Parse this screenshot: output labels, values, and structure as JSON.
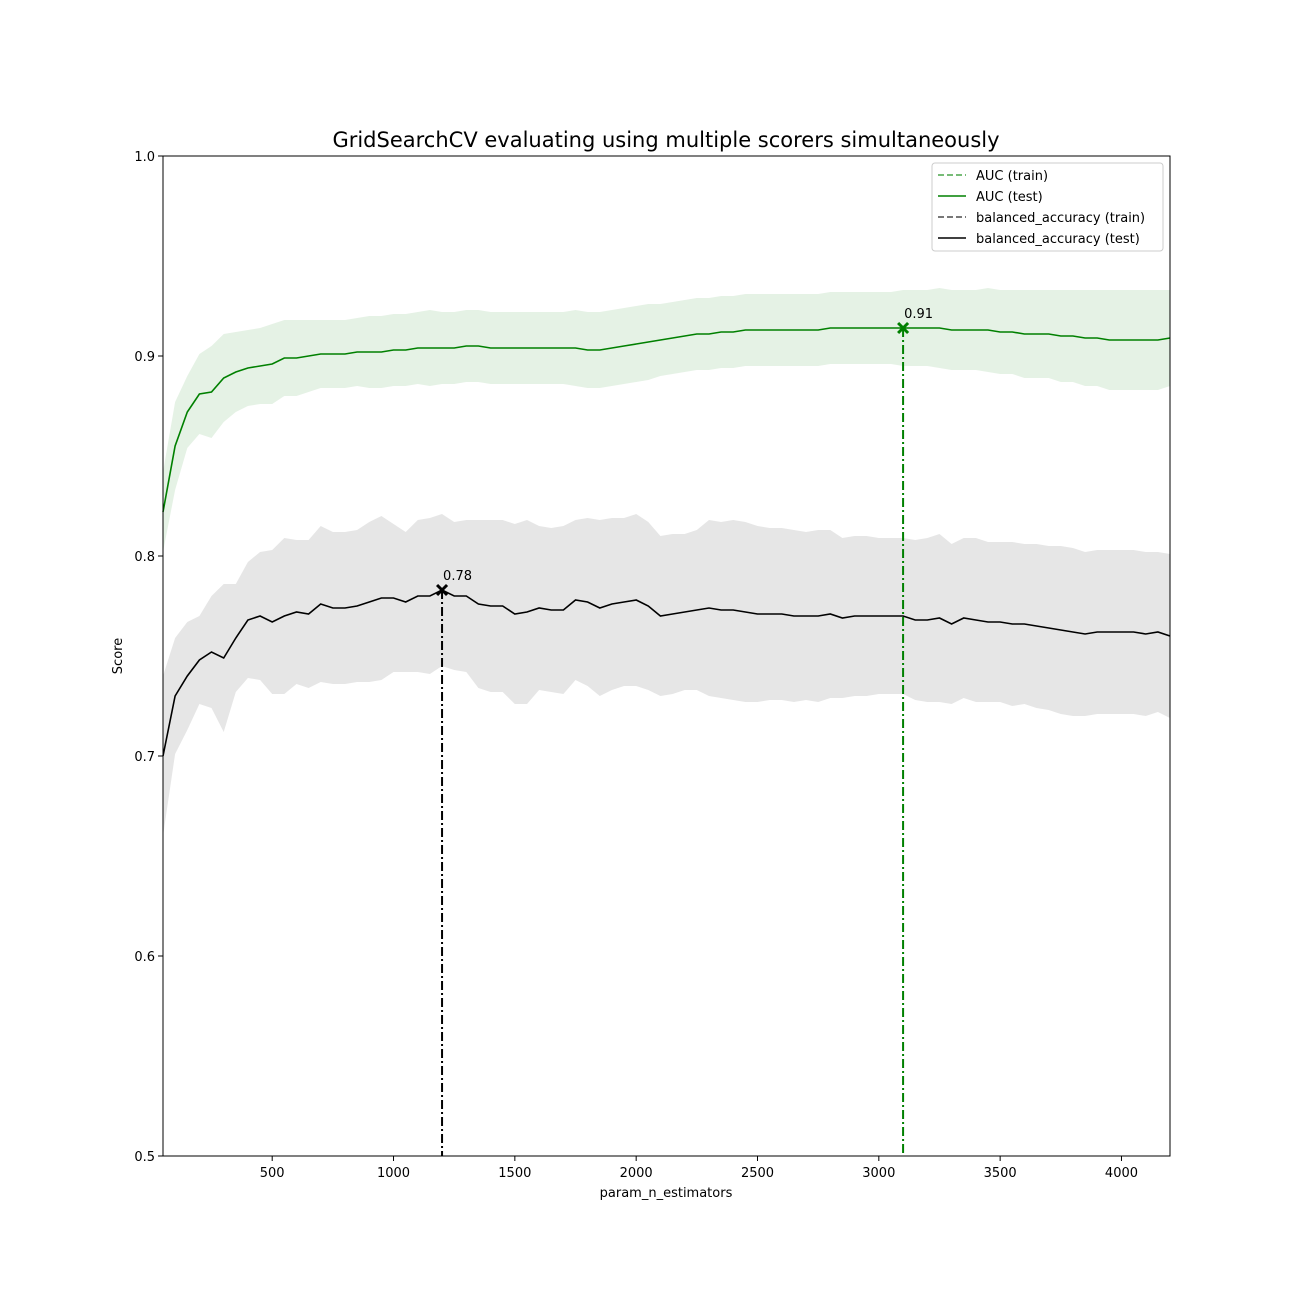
{
  "chart_data": {
    "type": "line",
    "title": "GridSearchCV evaluating using multiple scorers simultaneously",
    "xlabel": "param_n_estimators",
    "ylabel": "Score",
    "xlim": [
      50,
      4200
    ],
    "ylim": [
      0.5,
      1.0
    ],
    "xticks": [
      500,
      1000,
      1500,
      2000,
      2500,
      3000,
      3500,
      4000
    ],
    "yticks": [
      "0.5",
      "0.6",
      "0.7",
      "0.8",
      "0.9",
      "1.0"
    ],
    "grid": false,
    "legend_position": "top-right",
    "x": [
      50,
      100,
      150,
      200,
      250,
      300,
      350,
      400,
      450,
      500,
      550,
      600,
      650,
      700,
      750,
      800,
      850,
      900,
      950,
      1000,
      1050,
      1100,
      1150,
      1200,
      1250,
      1300,
      1350,
      1400,
      1450,
      1500,
      1550,
      1600,
      1650,
      1700,
      1750,
      1800,
      1850,
      1900,
      1950,
      2000,
      2050,
      2100,
      2150,
      2200,
      2250,
      2300,
      2350,
      2400,
      2450,
      2500,
      2550,
      2600,
      2650,
      2700,
      2750,
      2800,
      2850,
      2900,
      2950,
      3000,
      3050,
      3100,
      3150,
      3200,
      3250,
      3300,
      3350,
      3400,
      3450,
      3500,
      3550,
      3600,
      3650,
      3700,
      3750,
      3800,
      3850,
      3900,
      3950,
      4000,
      4050,
      4100,
      4150,
      4200
    ],
    "series": [
      {
        "name": "AUC (train)",
        "color": "#008000",
        "style": "dashed",
        "visible_in_plot": false
      },
      {
        "name": "AUC (test)",
        "color": "#008000",
        "style": "solid",
        "mean": [
          0.822,
          0.855,
          0.872,
          0.881,
          0.882,
          0.889,
          0.892,
          0.894,
          0.895,
          0.896,
          0.899,
          0.899,
          0.9,
          0.901,
          0.901,
          0.901,
          0.902,
          0.902,
          0.902,
          0.903,
          0.903,
          0.904,
          0.904,
          0.904,
          0.904,
          0.905,
          0.905,
          0.904,
          0.904,
          0.904,
          0.904,
          0.904,
          0.904,
          0.904,
          0.904,
          0.903,
          0.903,
          0.904,
          0.905,
          0.906,
          0.907,
          0.908,
          0.909,
          0.91,
          0.911,
          0.911,
          0.912,
          0.912,
          0.913,
          0.913,
          0.913,
          0.913,
          0.913,
          0.913,
          0.913,
          0.914,
          0.914,
          0.914,
          0.914,
          0.914,
          0.914,
          0.914,
          0.914,
          0.914,
          0.914,
          0.913,
          0.913,
          0.913,
          0.913,
          0.912,
          0.912,
          0.911,
          0.911,
          0.911,
          0.91,
          0.91,
          0.909,
          0.909,
          0.908,
          0.908,
          0.908,
          0.908,
          0.908,
          0.909
        ],
        "std": [
          0.02,
          0.022,
          0.018,
          0.02,
          0.023,
          0.022,
          0.02,
          0.019,
          0.019,
          0.02,
          0.019,
          0.019,
          0.018,
          0.017,
          0.017,
          0.017,
          0.017,
          0.018,
          0.018,
          0.018,
          0.018,
          0.018,
          0.019,
          0.018,
          0.018,
          0.018,
          0.018,
          0.018,
          0.018,
          0.018,
          0.018,
          0.018,
          0.018,
          0.018,
          0.019,
          0.019,
          0.019,
          0.019,
          0.019,
          0.019,
          0.019,
          0.018,
          0.018,
          0.018,
          0.018,
          0.018,
          0.018,
          0.018,
          0.018,
          0.018,
          0.018,
          0.018,
          0.018,
          0.018,
          0.018,
          0.018,
          0.018,
          0.018,
          0.018,
          0.018,
          0.018,
          0.019,
          0.019,
          0.019,
          0.02,
          0.02,
          0.02,
          0.02,
          0.021,
          0.021,
          0.021,
          0.022,
          0.022,
          0.022,
          0.023,
          0.023,
          0.024,
          0.024,
          0.025,
          0.025,
          0.025,
          0.025,
          0.025,
          0.024
        ],
        "best": {
          "x": 3100,
          "y": 0.914,
          "label": "0.91"
        }
      },
      {
        "name": "balanced_accuracy (train)",
        "color": "#000000",
        "style": "dashed",
        "visible_in_plot": false
      },
      {
        "name": "balanced_accuracy (test)",
        "color": "#000000",
        "style": "solid",
        "mean": [
          0.7,
          0.73,
          0.74,
          0.748,
          0.752,
          0.749,
          0.759,
          0.768,
          0.77,
          0.767,
          0.77,
          0.772,
          0.771,
          0.776,
          0.774,
          0.774,
          0.775,
          0.777,
          0.779,
          0.779,
          0.777,
          0.78,
          0.78,
          0.783,
          0.78,
          0.78,
          0.776,
          0.775,
          0.775,
          0.771,
          0.772,
          0.774,
          0.773,
          0.773,
          0.778,
          0.777,
          0.774,
          0.776,
          0.777,
          0.778,
          0.775,
          0.77,
          0.771,
          0.772,
          0.773,
          0.774,
          0.773,
          0.773,
          0.772,
          0.771,
          0.771,
          0.771,
          0.77,
          0.77,
          0.77,
          0.771,
          0.769,
          0.77,
          0.77,
          0.77,
          0.77,
          0.77,
          0.768,
          0.768,
          0.769,
          0.766,
          0.769,
          0.768,
          0.767,
          0.767,
          0.766,
          0.766,
          0.765,
          0.764,
          0.763,
          0.762,
          0.761,
          0.762,
          0.762,
          0.762,
          0.762,
          0.761,
          0.762,
          0.76
        ],
        "std": [
          0.04,
          0.029,
          0.027,
          0.022,
          0.028,
          0.037,
          0.027,
          0.029,
          0.032,
          0.036,
          0.039,
          0.036,
          0.037,
          0.039,
          0.038,
          0.038,
          0.038,
          0.04,
          0.041,
          0.037,
          0.035,
          0.038,
          0.039,
          0.038,
          0.037,
          0.038,
          0.042,
          0.043,
          0.043,
          0.045,
          0.046,
          0.041,
          0.041,
          0.042,
          0.04,
          0.042,
          0.044,
          0.043,
          0.042,
          0.043,
          0.042,
          0.04,
          0.04,
          0.039,
          0.04,
          0.044,
          0.044,
          0.045,
          0.045,
          0.044,
          0.043,
          0.043,
          0.043,
          0.042,
          0.043,
          0.042,
          0.04,
          0.04,
          0.04,
          0.039,
          0.039,
          0.039,
          0.04,
          0.041,
          0.042,
          0.04,
          0.04,
          0.041,
          0.04,
          0.04,
          0.041,
          0.04,
          0.041,
          0.041,
          0.042,
          0.042,
          0.041,
          0.041,
          0.041,
          0.041,
          0.041,
          0.041,
          0.04,
          0.041
        ],
        "best": {
          "x": 1200,
          "y": 0.783,
          "label": "0.78"
        }
      }
    ]
  }
}
